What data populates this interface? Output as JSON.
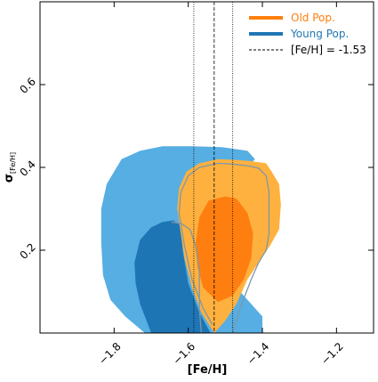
{
  "chart_data": {
    "type": "contour",
    "xlabel": "[Fe/H]",
    "ylabel_main": "σ",
    "ylabel_sub": "[Fe/H]",
    "xlim": [
      -2.0,
      -1.1
    ],
    "ylim": [
      0.0,
      0.8
    ],
    "x_ticks": [
      -1.8,
      -1.6,
      -1.4,
      -1.2
    ],
    "x_tick_labels": [
      "−1.8",
      "−1.6",
      "−1.4",
      "−1.2"
    ],
    "y_ticks": [
      0.2,
      0.4,
      0.6
    ],
    "y_tick_labels": [
      "0.2",
      "0.4",
      "0.6"
    ],
    "legend_position": "top-right",
    "legend": [
      {
        "label": "Old Pop.",
        "style": "solid-thick",
        "color": "#ff7f0e"
      },
      {
        "label": "Young Pop.",
        "style": "solid-thick",
        "color": "#1f77b4"
      },
      {
        "label": "[Fe/H] = -1.53",
        "style": "dashed",
        "color": "#000000"
      }
    ],
    "vertical_lines": [
      {
        "x": -1.53,
        "style": "dashed"
      },
      {
        "x": -1.585,
        "style": "dotted"
      },
      {
        "x": -1.48,
        "style": "dotted"
      }
    ],
    "contours": [
      {
        "name": "young-outer",
        "fill": "#56aee3",
        "points": [
          [
            -1.717,
            0.0
          ],
          [
            -1.4,
            0.0
          ],
          [
            -1.4,
            0.04
          ],
          [
            -1.46,
            0.1
          ],
          [
            -1.52,
            0.18
          ],
          [
            -1.56,
            0.26
          ],
          [
            -1.58,
            0.32
          ],
          [
            -1.54,
            0.36
          ],
          [
            -1.48,
            0.4
          ],
          [
            -1.43,
            0.41
          ],
          [
            -1.42,
            0.42
          ],
          [
            -1.44,
            0.44
          ],
          [
            -1.51,
            0.449
          ],
          [
            -1.59,
            0.451
          ],
          [
            -1.67,
            0.451
          ],
          [
            -1.73,
            0.44
          ],
          [
            -1.78,
            0.42
          ],
          [
            -1.82,
            0.36
          ],
          [
            -1.835,
            0.3
          ],
          [
            -1.835,
            0.22
          ],
          [
            -1.83,
            0.14
          ],
          [
            -1.81,
            0.08
          ],
          [
            -1.77,
            0.04
          ]
        ]
      },
      {
        "name": "young-inner",
        "fill": "#1e75b4",
        "points": [
          [
            -1.7,
            0.0
          ],
          [
            -1.54,
            0.0
          ],
          [
            -1.57,
            0.05
          ],
          [
            -1.6,
            0.12
          ],
          [
            -1.615,
            0.2
          ],
          [
            -1.62,
            0.26
          ],
          [
            -1.64,
            0.272
          ],
          [
            -1.67,
            0.268
          ],
          [
            -1.7,
            0.255
          ],
          [
            -1.73,
            0.225
          ],
          [
            -1.745,
            0.17
          ],
          [
            -1.742,
            0.12
          ],
          [
            -1.73,
            0.07
          ]
        ]
      },
      {
        "name": "old-outer",
        "fill": "#ffb13f",
        "points": [
          [
            -1.53,
            0.0
          ],
          [
            -1.5,
            0.03
          ],
          [
            -1.47,
            0.07
          ],
          [
            -1.44,
            0.13
          ],
          [
            -1.41,
            0.17
          ],
          [
            -1.38,
            0.21
          ],
          [
            -1.355,
            0.25
          ],
          [
            -1.35,
            0.31
          ],
          [
            -1.355,
            0.36
          ],
          [
            -1.375,
            0.39
          ],
          [
            -1.39,
            0.41
          ],
          [
            -1.43,
            0.415
          ],
          [
            -1.47,
            0.418
          ],
          [
            -1.52,
            0.42
          ],
          [
            -1.57,
            0.41
          ],
          [
            -1.605,
            0.39
          ],
          [
            -1.625,
            0.35
          ],
          [
            -1.63,
            0.3
          ],
          [
            -1.62,
            0.24
          ],
          [
            -1.61,
            0.18
          ],
          [
            -1.59,
            0.11
          ],
          [
            -1.565,
            0.05
          ]
        ]
      },
      {
        "name": "old-inner",
        "fill": "#fe7f10",
        "points": [
          [
            -1.52,
            0.075
          ],
          [
            -1.48,
            0.09
          ],
          [
            -1.45,
            0.13
          ],
          [
            -1.43,
            0.18
          ],
          [
            -1.425,
            0.24
          ],
          [
            -1.44,
            0.29
          ],
          [
            -1.47,
            0.325
          ],
          [
            -1.5,
            0.33
          ],
          [
            -1.545,
            0.32
          ],
          [
            -1.57,
            0.28
          ],
          [
            -1.58,
            0.22
          ],
          [
            -1.575,
            0.16
          ],
          [
            -1.56,
            0.11
          ]
        ]
      }
    ],
    "contour_outlines": [
      {
        "name": "old-outer-outline",
        "stroke": "#7f97a8",
        "points": [
          [
            -1.48,
            0.0
          ],
          [
            -1.46,
            0.06
          ],
          [
            -1.43,
            0.13
          ],
          [
            -1.41,
            0.17
          ],
          [
            -1.39,
            0.2
          ],
          [
            -1.382,
            0.24
          ],
          [
            -1.382,
            0.34
          ],
          [
            -1.39,
            0.38
          ],
          [
            -1.41,
            0.398
          ],
          [
            -1.44,
            0.404
          ],
          [
            -1.48,
            0.408
          ],
          [
            -1.52,
            0.41
          ],
          [
            -1.57,
            0.4
          ],
          [
            -1.6,
            0.38
          ],
          [
            -1.62,
            0.34
          ],
          [
            -1.625,
            0.29
          ],
          [
            -1.61,
            0.21
          ],
          [
            -1.59,
            0.13
          ],
          [
            -1.56,
            0.06
          ],
          [
            -1.535,
            0.02
          ]
        ]
      },
      {
        "name": "young-inner-outline",
        "stroke": "#7f97a8",
        "points": [
          [
            -1.565,
            0.0
          ],
          [
            -1.57,
            0.06
          ],
          [
            -1.57,
            0.15
          ],
          [
            -1.58,
            0.21
          ],
          [
            -1.595,
            0.25
          ],
          [
            -1.62,
            0.265
          ],
          [
            -1.645,
            0.268
          ]
        ]
      }
    ]
  }
}
